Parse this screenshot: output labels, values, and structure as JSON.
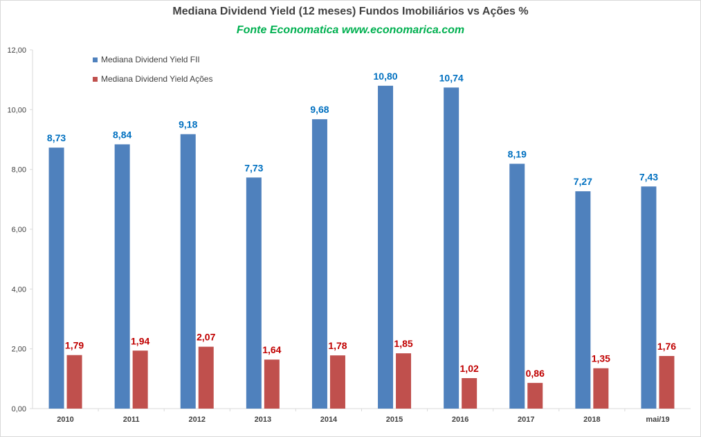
{
  "chart_data": {
    "type": "bar",
    "title": "Mediana Dividend Yield (12 meses) Fundos Imobiliários vs Ações %",
    "subtitle": "Fonte Economatica www.economarica.com",
    "categories": [
      "2010",
      "2011",
      "2012",
      "2013",
      "2014",
      "2015",
      "2016",
      "2017",
      "2018",
      "mai/19"
    ],
    "series": [
      {
        "name": "Mediana Dividend Yield FII",
        "color": "#4f81bd",
        "label_color": "#0070c0",
        "values": [
          8.73,
          8.84,
          9.18,
          7.73,
          9.68,
          10.8,
          10.74,
          8.19,
          7.27,
          7.43
        ],
        "labels": [
          "8,73",
          "8,84",
          "9,18",
          "7,73",
          "9,68",
          "10,80",
          "10,74",
          "8,19",
          "7,27",
          "7,43"
        ]
      },
      {
        "name": "Mediana Dividend Yield Ações",
        "color": "#c0504d",
        "label_color": "#c00000",
        "values": [
          1.79,
          1.94,
          2.07,
          1.64,
          1.78,
          1.85,
          1.02,
          0.86,
          1.35,
          1.76
        ],
        "labels": [
          "1,79",
          "1,94",
          "2,07",
          "1,64",
          "1,78",
          "1,85",
          "1,02",
          "0,86",
          "1,35",
          "1,76"
        ]
      }
    ],
    "ylim": [
      0,
      12
    ],
    "yticks": [
      0,
      2,
      4,
      6,
      8,
      10,
      12
    ],
    "ytick_labels": [
      "0,00",
      "2,00",
      "4,00",
      "6,00",
      "8,00",
      "10,00",
      "12,00"
    ],
    "xlabel": "",
    "ylabel": "",
    "grid": false,
    "legend_position": "top-left"
  }
}
